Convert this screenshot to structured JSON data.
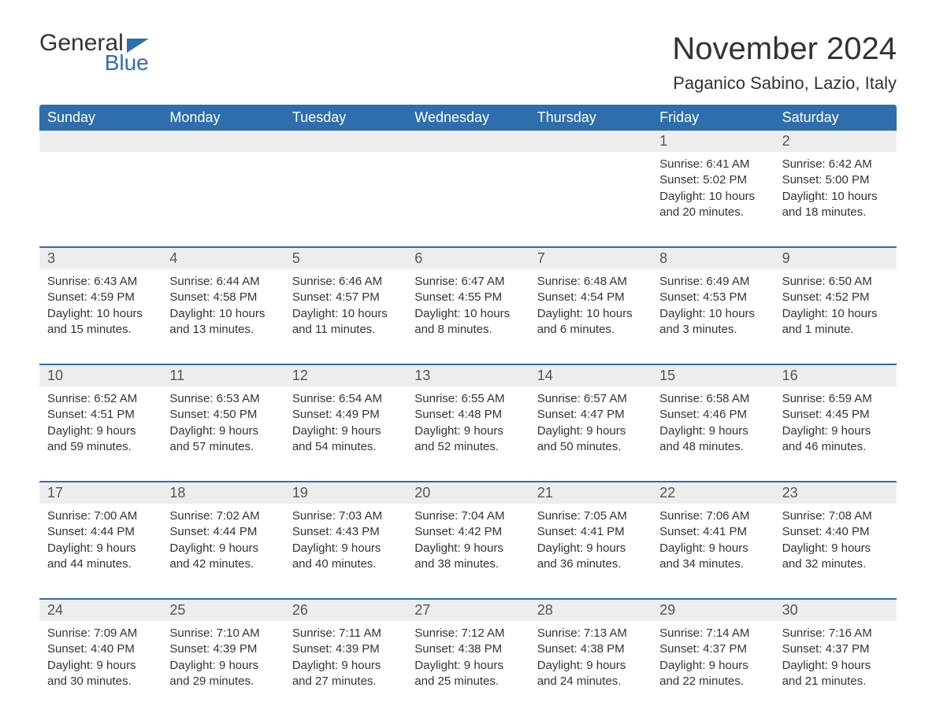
{
  "logo": {
    "text1": "General",
    "text2": "Blue"
  },
  "title": "November 2024",
  "location": "Paganico Sabino, Lazio, Italy",
  "colors": {
    "header_bg": "#2f6ead",
    "header_text": "#ffffff",
    "daynum_bg": "#ededed",
    "rule": "#2f6ead",
    "text": "#333333",
    "background": "#ffffff"
  },
  "weekdays": [
    "Sunday",
    "Monday",
    "Tuesday",
    "Wednesday",
    "Thursday",
    "Friday",
    "Saturday"
  ],
  "weeks": [
    [
      {
        "n": "",
        "sunrise": "",
        "sunset": "",
        "daylight": ""
      },
      {
        "n": "",
        "sunrise": "",
        "sunset": "",
        "daylight": ""
      },
      {
        "n": "",
        "sunrise": "",
        "sunset": "",
        "daylight": ""
      },
      {
        "n": "",
        "sunrise": "",
        "sunset": "",
        "daylight": ""
      },
      {
        "n": "",
        "sunrise": "",
        "sunset": "",
        "daylight": ""
      },
      {
        "n": "1",
        "sunrise": "Sunrise: 6:41 AM",
        "sunset": "Sunset: 5:02 PM",
        "daylight": "Daylight: 10 hours and 20 minutes."
      },
      {
        "n": "2",
        "sunrise": "Sunrise: 6:42 AM",
        "sunset": "Sunset: 5:00 PM",
        "daylight": "Daylight: 10 hours and 18 minutes."
      }
    ],
    [
      {
        "n": "3",
        "sunrise": "Sunrise: 6:43 AM",
        "sunset": "Sunset: 4:59 PM",
        "daylight": "Daylight: 10 hours and 15 minutes."
      },
      {
        "n": "4",
        "sunrise": "Sunrise: 6:44 AM",
        "sunset": "Sunset: 4:58 PM",
        "daylight": "Daylight: 10 hours and 13 minutes."
      },
      {
        "n": "5",
        "sunrise": "Sunrise: 6:46 AM",
        "sunset": "Sunset: 4:57 PM",
        "daylight": "Daylight: 10 hours and 11 minutes."
      },
      {
        "n": "6",
        "sunrise": "Sunrise: 6:47 AM",
        "sunset": "Sunset: 4:55 PM",
        "daylight": "Daylight: 10 hours and 8 minutes."
      },
      {
        "n": "7",
        "sunrise": "Sunrise: 6:48 AM",
        "sunset": "Sunset: 4:54 PM",
        "daylight": "Daylight: 10 hours and 6 minutes."
      },
      {
        "n": "8",
        "sunrise": "Sunrise: 6:49 AM",
        "sunset": "Sunset: 4:53 PM",
        "daylight": "Daylight: 10 hours and 3 minutes."
      },
      {
        "n": "9",
        "sunrise": "Sunrise: 6:50 AM",
        "sunset": "Sunset: 4:52 PM",
        "daylight": "Daylight: 10 hours and 1 minute."
      }
    ],
    [
      {
        "n": "10",
        "sunrise": "Sunrise: 6:52 AM",
        "sunset": "Sunset: 4:51 PM",
        "daylight": "Daylight: 9 hours and 59 minutes."
      },
      {
        "n": "11",
        "sunrise": "Sunrise: 6:53 AM",
        "sunset": "Sunset: 4:50 PM",
        "daylight": "Daylight: 9 hours and 57 minutes."
      },
      {
        "n": "12",
        "sunrise": "Sunrise: 6:54 AM",
        "sunset": "Sunset: 4:49 PM",
        "daylight": "Daylight: 9 hours and 54 minutes."
      },
      {
        "n": "13",
        "sunrise": "Sunrise: 6:55 AM",
        "sunset": "Sunset: 4:48 PM",
        "daylight": "Daylight: 9 hours and 52 minutes."
      },
      {
        "n": "14",
        "sunrise": "Sunrise: 6:57 AM",
        "sunset": "Sunset: 4:47 PM",
        "daylight": "Daylight: 9 hours and 50 minutes."
      },
      {
        "n": "15",
        "sunrise": "Sunrise: 6:58 AM",
        "sunset": "Sunset: 4:46 PM",
        "daylight": "Daylight: 9 hours and 48 minutes."
      },
      {
        "n": "16",
        "sunrise": "Sunrise: 6:59 AM",
        "sunset": "Sunset: 4:45 PM",
        "daylight": "Daylight: 9 hours and 46 minutes."
      }
    ],
    [
      {
        "n": "17",
        "sunrise": "Sunrise: 7:00 AM",
        "sunset": "Sunset: 4:44 PM",
        "daylight": "Daylight: 9 hours and 44 minutes."
      },
      {
        "n": "18",
        "sunrise": "Sunrise: 7:02 AM",
        "sunset": "Sunset: 4:44 PM",
        "daylight": "Daylight: 9 hours and 42 minutes."
      },
      {
        "n": "19",
        "sunrise": "Sunrise: 7:03 AM",
        "sunset": "Sunset: 4:43 PM",
        "daylight": "Daylight: 9 hours and 40 minutes."
      },
      {
        "n": "20",
        "sunrise": "Sunrise: 7:04 AM",
        "sunset": "Sunset: 4:42 PM",
        "daylight": "Daylight: 9 hours and 38 minutes."
      },
      {
        "n": "21",
        "sunrise": "Sunrise: 7:05 AM",
        "sunset": "Sunset: 4:41 PM",
        "daylight": "Daylight: 9 hours and 36 minutes."
      },
      {
        "n": "22",
        "sunrise": "Sunrise: 7:06 AM",
        "sunset": "Sunset: 4:41 PM",
        "daylight": "Daylight: 9 hours and 34 minutes."
      },
      {
        "n": "23",
        "sunrise": "Sunrise: 7:08 AM",
        "sunset": "Sunset: 4:40 PM",
        "daylight": "Daylight: 9 hours and 32 minutes."
      }
    ],
    [
      {
        "n": "24",
        "sunrise": "Sunrise: 7:09 AM",
        "sunset": "Sunset: 4:40 PM",
        "daylight": "Daylight: 9 hours and 30 minutes."
      },
      {
        "n": "25",
        "sunrise": "Sunrise: 7:10 AM",
        "sunset": "Sunset: 4:39 PM",
        "daylight": "Daylight: 9 hours and 29 minutes."
      },
      {
        "n": "26",
        "sunrise": "Sunrise: 7:11 AM",
        "sunset": "Sunset: 4:39 PM",
        "daylight": "Daylight: 9 hours and 27 minutes."
      },
      {
        "n": "27",
        "sunrise": "Sunrise: 7:12 AM",
        "sunset": "Sunset: 4:38 PM",
        "daylight": "Daylight: 9 hours and 25 minutes."
      },
      {
        "n": "28",
        "sunrise": "Sunrise: 7:13 AM",
        "sunset": "Sunset: 4:38 PM",
        "daylight": "Daylight: 9 hours and 24 minutes."
      },
      {
        "n": "29",
        "sunrise": "Sunrise: 7:14 AM",
        "sunset": "Sunset: 4:37 PM",
        "daylight": "Daylight: 9 hours and 22 minutes."
      },
      {
        "n": "30",
        "sunrise": "Sunrise: 7:16 AM",
        "sunset": "Sunset: 4:37 PM",
        "daylight": "Daylight: 9 hours and 21 minutes."
      }
    ]
  ]
}
